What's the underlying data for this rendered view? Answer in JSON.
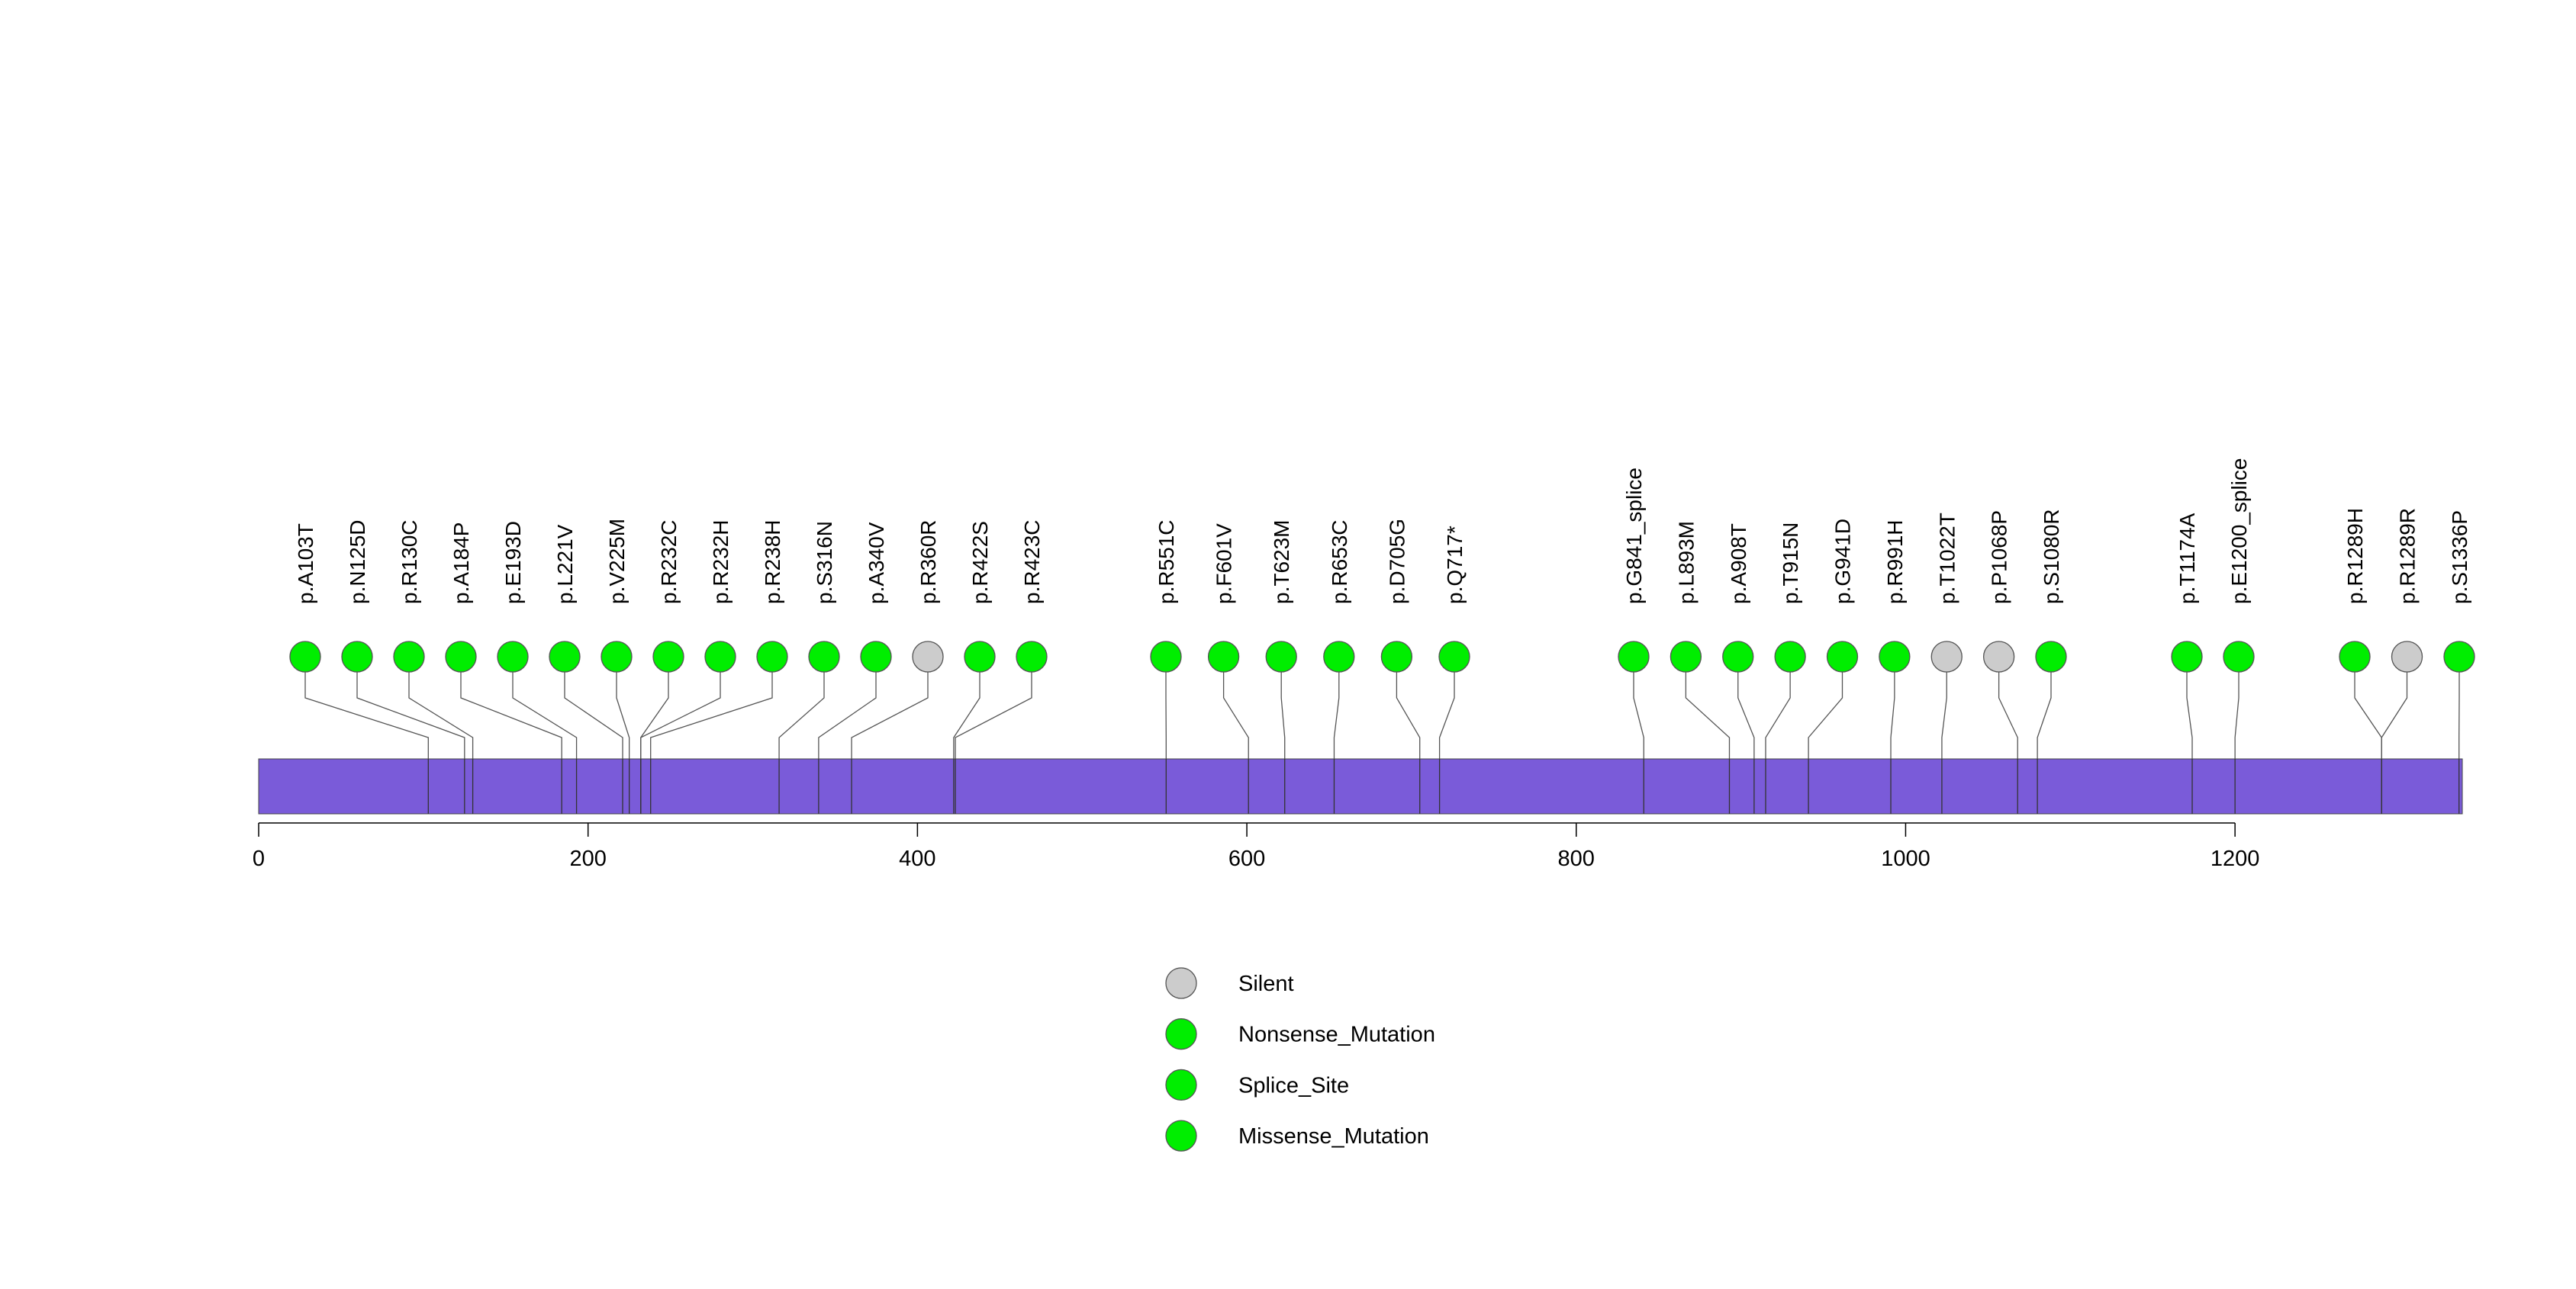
{
  "chart_data": {
    "type": "lollipop",
    "protein_length": 1338,
    "domain_color": "#7a5bd9",
    "x_axis": {
      "range": [
        0,
        1338
      ],
      "ticks": [
        0,
        200,
        400,
        600,
        800,
        1000,
        1200
      ]
    },
    "legend": {
      "placement": "bottom-center",
      "items": [
        {
          "label": "Silent",
          "color": "#cccccc"
        },
        {
          "label": "Nonsense_Mutation",
          "color": "#00ee00"
        },
        {
          "label": "Splice_Site",
          "color": "#00ee00"
        },
        {
          "label": "Missense_Mutation",
          "color": "#00ee00"
        }
      ]
    },
    "mutations": [
      {
        "label": "p.A103T",
        "position": 103,
        "type": "Missense_Mutation"
      },
      {
        "label": "p.N125D",
        "position": 125,
        "type": "Missense_Mutation"
      },
      {
        "label": "p.R130C",
        "position": 130,
        "type": "Missense_Mutation"
      },
      {
        "label": "p.A184P",
        "position": 184,
        "type": "Missense_Mutation"
      },
      {
        "label": "p.E193D",
        "position": 193,
        "type": "Missense_Mutation"
      },
      {
        "label": "p.L221V",
        "position": 221,
        "type": "Missense_Mutation"
      },
      {
        "label": "p.V225M",
        "position": 225,
        "type": "Missense_Mutation"
      },
      {
        "label": "p.R232C",
        "position": 232,
        "type": "Missense_Mutation"
      },
      {
        "label": "p.R232H",
        "position": 232,
        "type": "Missense_Mutation"
      },
      {
        "label": "p.R238H",
        "position": 238,
        "type": "Missense_Mutation"
      },
      {
        "label": "p.S316N",
        "position": 316,
        "type": "Missense_Mutation"
      },
      {
        "label": "p.A340V",
        "position": 340,
        "type": "Missense_Mutation"
      },
      {
        "label": "p.R360R",
        "position": 360,
        "type": "Silent"
      },
      {
        "label": "p.R422S",
        "position": 422,
        "type": "Missense_Mutation"
      },
      {
        "label": "p.R423C",
        "position": 423,
        "type": "Missense_Mutation"
      },
      {
        "label": "p.R551C",
        "position": 551,
        "type": "Missense_Mutation"
      },
      {
        "label": "p.F601V",
        "position": 601,
        "type": "Missense_Mutation"
      },
      {
        "label": "p.T623M",
        "position": 623,
        "type": "Missense_Mutation"
      },
      {
        "label": "p.R653C",
        "position": 653,
        "type": "Missense_Mutation"
      },
      {
        "label": "p.D705G",
        "position": 705,
        "type": "Missense_Mutation"
      },
      {
        "label": "p.Q717*",
        "position": 717,
        "type": "Nonsense_Mutation"
      },
      {
        "label": "p.G841_splice",
        "position": 841,
        "type": "Splice_Site"
      },
      {
        "label": "p.L893M",
        "position": 893,
        "type": "Missense_Mutation"
      },
      {
        "label": "p.A908T",
        "position": 908,
        "type": "Missense_Mutation"
      },
      {
        "label": "p.T915N",
        "position": 915,
        "type": "Missense_Mutation"
      },
      {
        "label": "p.G941D",
        "position": 941,
        "type": "Missense_Mutation"
      },
      {
        "label": "p.R991H",
        "position": 991,
        "type": "Missense_Mutation"
      },
      {
        "label": "p.T1022T",
        "position": 1022,
        "type": "Silent"
      },
      {
        "label": "p.P1068P",
        "position": 1068,
        "type": "Silent"
      },
      {
        "label": "p.S1080R",
        "position": 1080,
        "type": "Missense_Mutation"
      },
      {
        "label": "p.T1174A",
        "position": 1174,
        "type": "Missense_Mutation"
      },
      {
        "label": "p.E1200_splice",
        "position": 1200,
        "type": "Splice_Site"
      },
      {
        "label": "p.R1289H",
        "position": 1289,
        "type": "Missense_Mutation"
      },
      {
        "label": "p.R1289R",
        "position": 1289,
        "type": "Silent"
      },
      {
        "label": "p.S1336P",
        "position": 1336,
        "type": "Missense_Mutation"
      }
    ]
  }
}
